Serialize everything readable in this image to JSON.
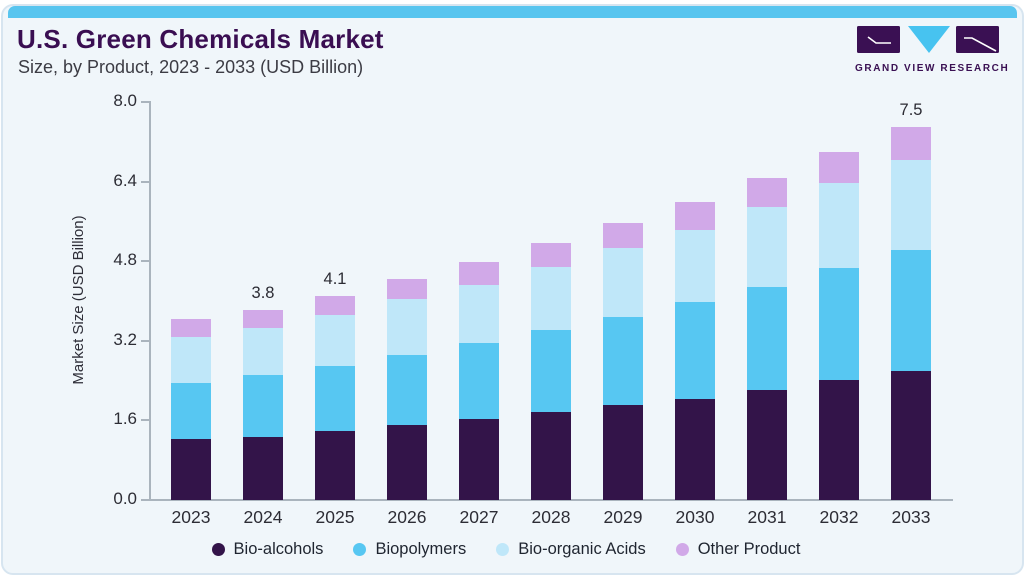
{
  "header": {
    "title": "U.S. Green Chemicals Market",
    "subtitle": "Size, by Product, 2023 - 2033 (USD Billion)"
  },
  "logo": {
    "text": "GRAND VIEW RESEARCH",
    "purple": "#3a1053",
    "blue": "#47c3f0"
  },
  "chart_data": {
    "type": "bar",
    "stacked": true,
    "title": "U.S. Green Chemicals Market Size, by Product, 2023 - 2033 (USD Billion)",
    "ylabel": "Market Size (USD Billion)",
    "xlabel": "",
    "ylim": [
      0,
      8.0
    ],
    "yticks": [
      0.0,
      1.6,
      3.2,
      4.8,
      6.4,
      8.0
    ],
    "grid": false,
    "legend_position": "bottom",
    "categories": [
      "2023",
      "2024",
      "2025",
      "2026",
      "2027",
      "2028",
      "2029",
      "2030",
      "2031",
      "2032",
      "2033"
    ],
    "series": [
      {
        "name": "Bio-alcohols",
        "color": "#331449",
        "values": [
          1.22,
          1.27,
          1.38,
          1.5,
          1.62,
          1.76,
          1.9,
          2.04,
          2.22,
          2.42,
          2.6
        ]
      },
      {
        "name": "Biopolymers",
        "color": "#57c7f2",
        "values": [
          1.13,
          1.25,
          1.32,
          1.41,
          1.53,
          1.65,
          1.78,
          1.93,
          2.07,
          2.25,
          2.42
        ]
      },
      {
        "name": "Bio-organic Acids",
        "color": "#bfe7f9",
        "values": [
          0.92,
          0.94,
          1.02,
          1.13,
          1.17,
          1.28,
          1.39,
          1.46,
          1.6,
          1.7,
          1.82
        ]
      },
      {
        "name": "Other Product",
        "color": "#d1a9e8",
        "values": [
          0.36,
          0.36,
          0.38,
          0.41,
          0.46,
          0.48,
          0.49,
          0.56,
          0.58,
          0.63,
          0.66
        ]
      }
    ],
    "totals": [
      3.63,
      3.82,
      4.1,
      4.45,
      4.78,
      5.17,
      5.56,
      5.99,
      6.47,
      7.0,
      7.5
    ],
    "total_labels": [
      "",
      "3.8",
      "4.1",
      "",
      "",
      "",
      "",
      "",
      "",
      "",
      "7.5"
    ],
    "axis_color": "#aab4bd",
    "tick_text_color": "#2d2d35",
    "value_label_color": "#2b2b33"
  }
}
